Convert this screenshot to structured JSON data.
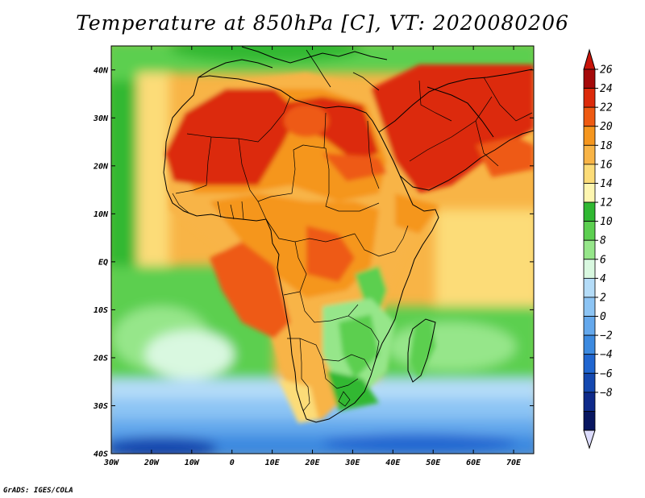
{
  "title": "Temperature at 850hPa [C], VT: 2020080206",
  "credit": "GrADS: IGES/COLA",
  "map": {
    "projection": "latlon",
    "lon_range": [
      -30,
      75
    ],
    "lat_range": [
      -40,
      45
    ],
    "lon_ticks": [
      {
        "value": -30,
        "label": "30W"
      },
      {
        "value": -20,
        "label": "20W"
      },
      {
        "value": -10,
        "label": "10W"
      },
      {
        "value": 0,
        "label": "0"
      },
      {
        "value": 10,
        "label": "10E"
      },
      {
        "value": 20,
        "label": "20E"
      },
      {
        "value": 30,
        "label": "30E"
      },
      {
        "value": 40,
        "label": "40E"
      },
      {
        "value": 50,
        "label": "50E"
      },
      {
        "value": 60,
        "label": "60E"
      },
      {
        "value": 70,
        "label": "70E"
      }
    ],
    "lat_ticks": [
      {
        "value": 40,
        "label": "40N"
      },
      {
        "value": 30,
        "label": "30N"
      },
      {
        "value": 20,
        "label": "20N"
      },
      {
        "value": 10,
        "label": "10N"
      },
      {
        "value": 0,
        "label": "EQ"
      },
      {
        "value": -10,
        "label": "10S"
      },
      {
        "value": -20,
        "label": "20S"
      },
      {
        "value": -30,
        "label": "30S"
      },
      {
        "value": -40,
        "label": "40S"
      }
    ],
    "field": "Temperature at 850hPa",
    "units": "C"
  },
  "colorbar": {
    "levels": [
      26,
      24,
      22,
      20,
      18,
      16,
      14,
      12,
      10,
      8,
      6,
      4,
      2,
      0,
      -2,
      -4,
      -6,
      -8
    ],
    "colors": [
      "#a50a0a",
      "#dc2a0a",
      "#ee5a12",
      "#f5961e",
      "#f8b446",
      "#fcdc78",
      "#fef6b0",
      "#30b832",
      "#5ccf50",
      "#96e68a",
      "#d9f8e0",
      "#b4dcf8",
      "#8cc4f4",
      "#64a8ec",
      "#3c8ae0",
      "#2066d0",
      "#1448b0",
      "#0e2a8a",
      "#081660"
    ],
    "top_arrow_color": "#c8140a",
    "bottom_arrow_color": "#dcdcfc"
  },
  "regions": [
    {
      "name": "saharan-heat-core",
      "value": 25,
      "lon": [
        -15,
        25
      ],
      "lat": [
        14,
        33
      ]
    },
    {
      "name": "arabian-heat-core",
      "value": 25,
      "lon": [
        38,
        70
      ],
      "lat": [
        15,
        38
      ]
    },
    {
      "name": "southeast-african-cool-zone",
      "value": 11,
      "lon": [
        23,
        38
      ],
      "lat": [
        -30,
        -8
      ]
    },
    {
      "name": "southern-ocean-cold",
      "value": 0,
      "lon": [
        -30,
        75
      ],
      "lat": [
        -40,
        -28
      ]
    },
    {
      "name": "south-atlantic-cool",
      "value": 8,
      "lon": [
        -30,
        5
      ],
      "lat": [
        -28,
        -12
      ]
    }
  ]
}
